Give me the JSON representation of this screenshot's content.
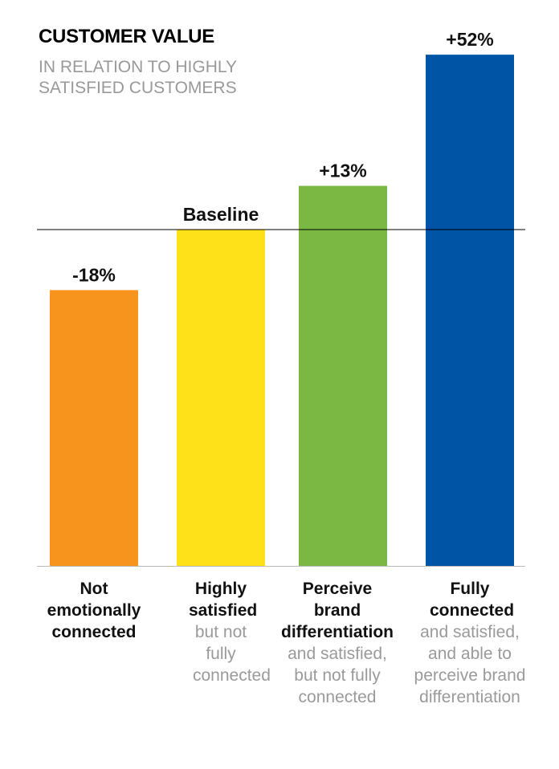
{
  "chart_data": {
    "type": "bar",
    "title": "CUSTOMER VALUE",
    "subtitle": "IN RELATION TO HIGHLY SATISFIED CUSTOMERS",
    "baseline_value": 100,
    "baseline_label": "Baseline",
    "categories": [
      {
        "label": "Not emotionally connected",
        "sublabel": ""
      },
      {
        "label": "Highly satisfied",
        "sublabel": "but not fully connected"
      },
      {
        "label": "Perceive brand differentiation",
        "sublabel": "and satisfied, but not fully connected"
      },
      {
        "label": "Fully connected",
        "sublabel": "and satisfied, and able to perceive brand differentiation"
      }
    ],
    "values": [
      82,
      100,
      113,
      152
    ],
    "data_labels": [
      "-18%",
      "Baseline",
      "+13%",
      "+52%"
    ],
    "colors": [
      "#F7941D",
      "#FFE11A",
      "#7AB843",
      "#0054A6"
    ],
    "ylim": [
      0,
      152
    ],
    "grid": false
  }
}
